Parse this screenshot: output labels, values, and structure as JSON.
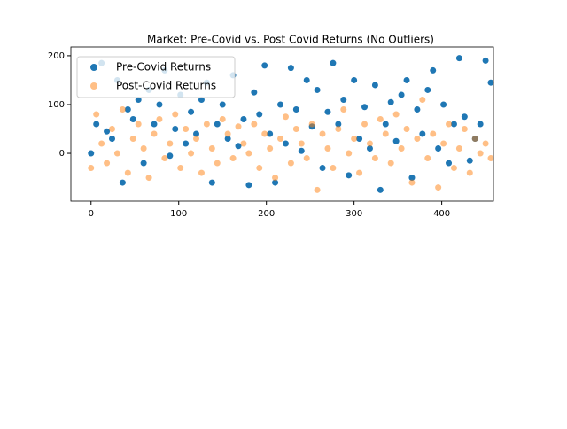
{
  "chart_data": {
    "type": "scatter",
    "title": "Market: Pre-Covid vs. Post Covid Returns (No Outliers)",
    "x": [
      0,
      6,
      12,
      18,
      24,
      30,
      36,
      42,
      48,
      54,
      60,
      66,
      72,
      78,
      84,
      90,
      96,
      102,
      108,
      114,
      120,
      126,
      132,
      138,
      144,
      150,
      156,
      162,
      168,
      174,
      180,
      186,
      192,
      198,
      204,
      210,
      216,
      222,
      228,
      234,
      240,
      246,
      252,
      258,
      264,
      270,
      276,
      282,
      288,
      294,
      300,
      306,
      312,
      318,
      324,
      330,
      336,
      342,
      348,
      354,
      360,
      366,
      372,
      378,
      384,
      390,
      396,
      402,
      408,
      414,
      420,
      426,
      432,
      438,
      444,
      450,
      456
    ],
    "series": [
      {
        "name": "Pre-Covid Returns",
        "color": "#1f77b4",
        "alpha": 1,
        "values": [
          0,
          60,
          185,
          45,
          30,
          150,
          -60,
          90,
          70,
          110,
          -20,
          130,
          60,
          100,
          170,
          -5,
          50,
          120,
          20,
          85,
          40,
          110,
          145,
          -60,
          60,
          100,
          30,
          160,
          15,
          70,
          -65,
          125,
          80,
          180,
          40,
          -60,
          100,
          20,
          175,
          90,
          5,
          150,
          55,
          130,
          -30,
          85,
          185,
          60,
          110,
          -45,
          150,
          30,
          95,
          10,
          140,
          -75,
          60,
          105,
          25,
          120,
          150,
          -50,
          90,
          40,
          130,
          170,
          10,
          100,
          -20,
          60,
          195,
          75,
          -15,
          30,
          60,
          190,
          145
        ]
      },
      {
        "name": "Post-Covid Returns",
        "color": "#ff7f0e",
        "alpha": 0.5,
        "values": [
          -30,
          80,
          20,
          -20,
          50,
          0,
          90,
          -40,
          30,
          60,
          10,
          -50,
          40,
          70,
          -10,
          20,
          80,
          -30,
          50,
          0,
          30,
          -40,
          60,
          10,
          -20,
          70,
          40,
          -10,
          55,
          20,
          0,
          60,
          -30,
          40,
          10,
          -50,
          30,
          75,
          -20,
          50,
          20,
          -10,
          60,
          -75,
          40,
          10,
          -30,
          50,
          90,
          0,
          30,
          -40,
          60,
          20,
          -10,
          70,
          40,
          -20,
          80,
          10,
          50,
          -60,
          30,
          110,
          -10,
          40,
          -70,
          20,
          60,
          -30,
          10,
          50,
          -40,
          30,
          0,
          20,
          -10
        ]
      }
    ],
    "xlim": [
      -23,
      459
    ],
    "ylim": [
      -98,
      218
    ],
    "xticks": [
      0,
      100,
      200,
      300,
      400
    ],
    "yticks": [
      0,
      100,
      200
    ],
    "legend": "upper left"
  }
}
